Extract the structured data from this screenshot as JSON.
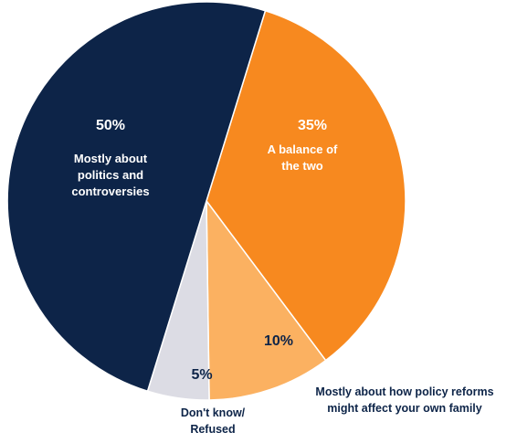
{
  "chart_data": {
    "type": "pie",
    "slices": [
      {
        "label": "A balance of the two",
        "display_label": [
          "A balance of",
          "the two"
        ],
        "value": 35,
        "value_label": "35%",
        "color": "#f7891f"
      },
      {
        "label": "Mostly about how policy reforms might affect your own family",
        "display_label": [
          "Mostly about how policy reforms",
          "might affect your own family"
        ],
        "value": 10,
        "value_label": "10%",
        "color": "#fbb161"
      },
      {
        "label": "Don't know/ Refused",
        "display_label": [
          "Don't know/",
          "Refused"
        ],
        "value": 5,
        "value_label": "5%",
        "color": "#dcdce4"
      },
      {
        "label": "Mostly about politics and controversies",
        "display_label": [
          "Mostly about",
          "politics and",
          "controversies"
        ],
        "value": 50,
        "value_label": "50%",
        "color": "#0d2448"
      }
    ],
    "title": "",
    "legend": "none"
  }
}
